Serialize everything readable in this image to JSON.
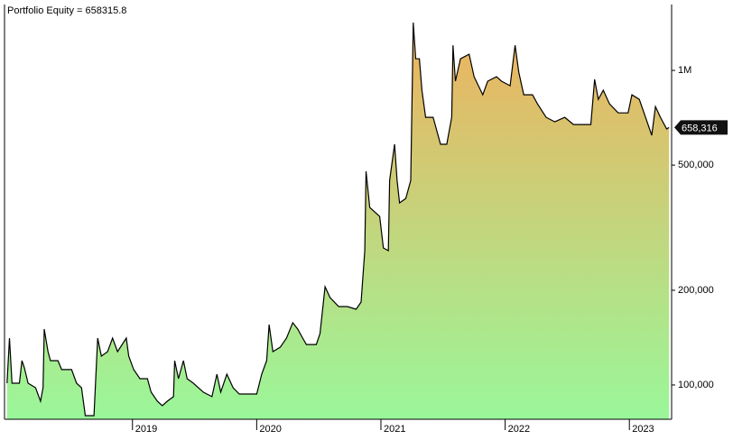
{
  "chart_data": {
    "type": "area",
    "title": "Portfolio Equity = 658315.8",
    "log_scale": true,
    "color": "#000000",
    "fill_gradient": [
      "#9af79a",
      "#efb15e"
    ],
    "x": [
      2017.99,
      2018.01,
      2018.03,
      2018.09,
      2018.11,
      2018.13,
      2018.16,
      2018.22,
      2018.26,
      2018.28,
      2018.29,
      2018.32,
      2018.34,
      2018.4,
      2018.43,
      2018.51,
      2018.55,
      2018.59,
      2018.62,
      2018.69,
      2018.72,
      2018.75,
      2018.8,
      2018.84,
      2018.88,
      2018.95,
      2018.97,
      2019.01,
      2019.06,
      2019.12,
      2019.15,
      2019.2,
      2019.24,
      2019.28,
      2019.33,
      2019.34,
      2019.37,
      2019.41,
      2019.44,
      2019.49,
      2019.57,
      2019.64,
      2019.68,
      2019.71,
      2019.76,
      2019.81,
      2019.86,
      2020.0,
      2020.04,
      2020.08,
      2020.1,
      2020.13,
      2020.19,
      2020.24,
      2020.29,
      2020.33,
      2020.37,
      2020.4,
      2020.48,
      2020.51,
      2020.55,
      2020.59,
      2020.66,
      2020.73,
      2020.8,
      2020.84,
      2020.87,
      2020.88,
      2020.91,
      2020.99,
      2021.02,
      2021.06,
      2021.07,
      2021.11,
      2021.13,
      2021.15,
      2021.2,
      2021.24,
      2021.26,
      2021.28,
      2021.31,
      2021.33,
      2021.36,
      2021.42,
      2021.48,
      2021.53,
      2021.57,
      2021.58,
      2021.6,
      2021.64,
      2021.71,
      2021.75,
      2021.82,
      2021.86,
      2021.93,
      2021.97,
      2022.04,
      2022.08,
      2022.11,
      2022.15,
      2022.22,
      2022.26,
      2022.33,
      2022.4,
      2022.48,
      2022.55,
      2022.69,
      2022.72,
      2022.75,
      2022.79,
      2022.84,
      2022.91,
      2022.99,
      2023.02,
      2023.08,
      2023.13,
      2023.18,
      2023.21,
      2023.25,
      2023.3,
      2023.32
    ],
    "values": [
      101300,
      140900,
      101300,
      101300,
      119500,
      113400,
      101300,
      98000,
      88800,
      98000,
      150500,
      127600,
      119500,
      119500,
      111900,
      111900,
      101300,
      98000,
      79900,
      79900,
      140900,
      123500,
      127600,
      140900,
      127600,
      140900,
      123500,
      111900,
      104700,
      104700,
      94900,
      88800,
      85900,
      88800,
      91800,
      119500,
      104700,
      119500,
      104700,
      101300,
      94900,
      91800,
      108200,
      94900,
      108200,
      98000,
      93600,
      93600,
      108200,
      119500,
      155600,
      127600,
      131900,
      140900,
      157700,
      150500,
      140900,
      134500,
      134500,
      145600,
      205300,
      189700,
      177500,
      177500,
      174100,
      183500,
      267300,
      477700,
      366800,
      343400,
      272700,
      267300,
      446700,
      582300,
      446700,
      379200,
      391800,
      446700,
      1419000,
      1089000,
      1089000,
      865000,
      709500,
      709500,
      582300,
      582300,
      709500,
      1202000,
      924700,
      1089000,
      1126000,
      955000,
      837000,
      924700,
      955000,
      924700,
      894000,
      1202000,
      987000,
      837000,
      837000,
      783000,
      709500,
      686600,
      709500,
      673000,
      673000,
      936000,
      809000,
      865000,
      783000,
      733000,
      733000,
      837000,
      809000,
      709500,
      622000,
      767000,
      709500,
      651700,
      658315.8
    ],
    "xlim": [
      2017.97,
      2023.34
    ],
    "xticks": [
      2019,
      2020,
      2021,
      2022,
      2023
    ],
    "ylim": [
      77800,
      1620000
    ],
    "yticks": [
      {
        "value": 100000,
        "label": "100,000"
      },
      {
        "value": 200000,
        "label": "200,000"
      },
      {
        "value": 500000,
        "label": "500,000"
      },
      {
        "value": 1000000,
        "label": "1M"
      }
    ],
    "last_label": {
      "value": 658315.8,
      "label": "658,316"
    }
  }
}
